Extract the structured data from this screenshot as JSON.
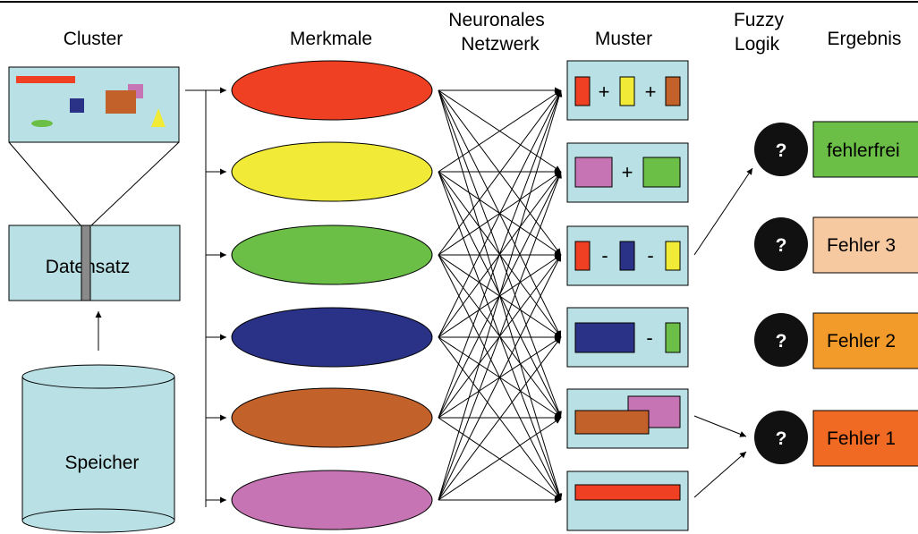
{
  "headers": {
    "cluster": "Cluster",
    "merkmale": "Merkmale",
    "netz_line1": "Neuronales",
    "netz_line2": "Netzwerk",
    "muster": "Muster",
    "fuzzy_line1": "Fuzzy",
    "fuzzy_line2": "Logik",
    "ergebnis": "Ergebnis"
  },
  "left": {
    "datensatz": "Datensatz",
    "speicher": "Speicher"
  },
  "features": {
    "colors": [
      "#ef4024",
      "#f1eb38",
      "#6bbf47",
      "#2a3287",
      "#c2612a",
      "#c674b3"
    ]
  },
  "patterns": {
    "op_plus": "+",
    "op_minus": "-"
  },
  "fuzzy": {
    "symbol": "?"
  },
  "results": [
    {
      "label": "fehlerfrei",
      "color": "#6bbf47"
    },
    {
      "label": "Fehler 3",
      "color": "#f7c9a0"
    },
    {
      "label": "Fehler 2",
      "color": "#f29a2a"
    },
    {
      "label": "Fehler 1",
      "color": "#f06a23"
    }
  ],
  "colors": {
    "panel": "#b9e0e4",
    "bar": "#8a8a8a"
  }
}
